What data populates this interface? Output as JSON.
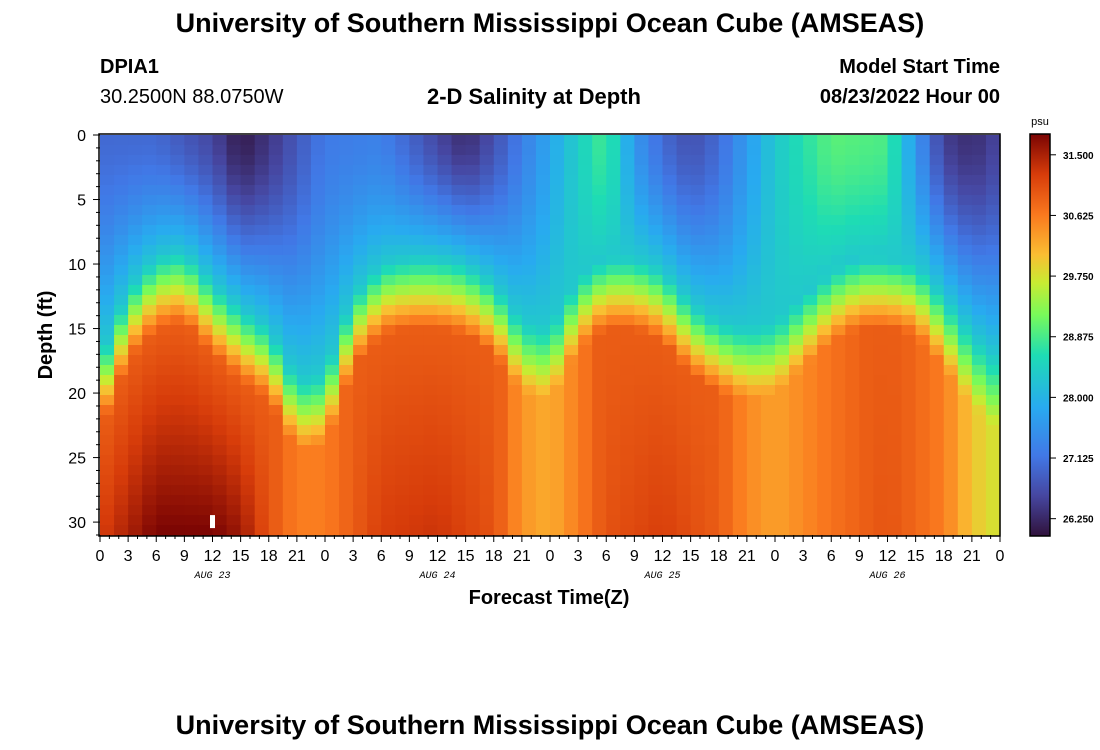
{
  "header": {
    "title": "University of Southern Mississippi Ocean Cube (AMSEAS)",
    "station_id": "DPIA1",
    "coords": "30.2500N  88.0750W",
    "plot_name": "2-D Salinity at Depth",
    "model_start_label": "Model Start Time",
    "model_start_value": "08/23/2022 Hour 00"
  },
  "footer": {
    "title": "University of Southern Mississippi Ocean Cube (AMSEAS)"
  },
  "chart_data": {
    "type": "heatmap",
    "title": "2-D Salinity at Depth",
    "xlabel": "Forecast Time(Z)",
    "ylabel": "Depth (ft)",
    "x_range_hours": [
      0,
      96
    ],
    "y_range_ft": [
      0,
      31
    ],
    "x_tick_labels": [
      "0",
      "3",
      "6",
      "9",
      "12",
      "15",
      "18",
      "21",
      "0",
      "3",
      "6",
      "9",
      "12",
      "15",
      "18",
      "21",
      "0",
      "3",
      "6",
      "9",
      "12",
      "15",
      "18",
      "21",
      "0",
      "3",
      "6",
      "9",
      "12",
      "15",
      "18",
      "21",
      "0"
    ],
    "y_ticks": [
      0,
      5,
      10,
      15,
      20,
      25,
      30
    ],
    "day_labels": [
      {
        "hour": 12,
        "label": "AUG 23"
      },
      {
        "hour": 36,
        "label": "AUG 24"
      },
      {
        "hour": 60,
        "label": "AUG 25"
      },
      {
        "hour": 84,
        "label": "AUG 26"
      }
    ],
    "colorbar": {
      "unit": "psu",
      "min": 26.0,
      "max": 31.8,
      "ticks": [
        "31.500",
        "30.625",
        "29.750",
        "28.875",
        "28.000",
        "27.125",
        "26.250"
      ]
    },
    "halocline_depth_ft": [
      {
        "hour": 0,
        "depth": 20.0
      },
      {
        "hour": 3,
        "depth": 14.5
      },
      {
        "hour": 6,
        "depth": 12.0
      },
      {
        "hour": 9,
        "depth": 11.5
      },
      {
        "hour": 12,
        "depth": 14.0
      },
      {
        "hour": 15,
        "depth": 16.0
      },
      {
        "hour": 18,
        "depth": 17.5
      },
      {
        "hour": 21,
        "depth": 21.5
      },
      {
        "hour": 24,
        "depth": 21.0
      },
      {
        "hour": 27,
        "depth": 15.0
      },
      {
        "hour": 30,
        "depth": 12.5
      },
      {
        "hour": 33,
        "depth": 12.0
      },
      {
        "hour": 36,
        "depth": 12.0
      },
      {
        "hour": 39,
        "depth": 12.5
      },
      {
        "hour": 42,
        "depth": 14.0
      },
      {
        "hour": 45,
        "depth": 17.0
      },
      {
        "hour": 48,
        "depth": 17.5
      },
      {
        "hour": 51,
        "depth": 13.5
      },
      {
        "hour": 54,
        "depth": 12.0
      },
      {
        "hour": 57,
        "depth": 12.0
      },
      {
        "hour": 60,
        "depth": 13.0
      },
      {
        "hour": 63,
        "depth": 15.5
      },
      {
        "hour": 66,
        "depth": 17.0
      },
      {
        "hour": 69,
        "depth": 17.5
      },
      {
        "hour": 72,
        "depth": 17.0
      },
      {
        "hour": 75,
        "depth": 15.0
      },
      {
        "hour": 78,
        "depth": 13.0
      },
      {
        "hour": 81,
        "depth": 12.0
      },
      {
        "hour": 84,
        "depth": 12.0
      },
      {
        "hour": 87,
        "depth": 12.5
      },
      {
        "hour": 90,
        "depth": 15.0
      },
      {
        "hour": 93,
        "depth": 18.0
      },
      {
        "hour": 96,
        "depth": 20.0
      }
    ],
    "surface_salinity_psu": [
      {
        "hour": 0,
        "value": 27.0
      },
      {
        "hour": 6,
        "value": 27.0
      },
      {
        "hour": 12,
        "value": 26.6
      },
      {
        "hour": 15,
        "value": 26.1
      },
      {
        "hour": 18,
        "value": 26.4
      },
      {
        "hour": 24,
        "value": 27.2
      },
      {
        "hour": 30,
        "value": 27.3
      },
      {
        "hour": 36,
        "value": 26.6
      },
      {
        "hour": 39,
        "value": 26.3
      },
      {
        "hour": 42,
        "value": 26.7
      },
      {
        "hour": 48,
        "value": 27.8
      },
      {
        "hour": 51,
        "value": 28.4
      },
      {
        "hour": 54,
        "value": 28.9
      },
      {
        "hour": 57,
        "value": 27.6
      },
      {
        "hour": 60,
        "value": 27.0
      },
      {
        "hour": 63,
        "value": 26.7
      },
      {
        "hour": 66,
        "value": 27.0
      },
      {
        "hour": 72,
        "value": 28.3
      },
      {
        "hour": 78,
        "value": 29.0
      },
      {
        "hour": 84,
        "value": 28.9
      },
      {
        "hour": 87,
        "value": 27.6
      },
      {
        "hour": 90,
        "value": 26.5
      },
      {
        "hour": 93,
        "value": 26.3
      },
      {
        "hour": 96,
        "value": 26.6
      }
    ],
    "bottom_salinity_psu": [
      {
        "hour": 0,
        "value": 31.2
      },
      {
        "hour": 6,
        "value": 31.8
      },
      {
        "hour": 12,
        "value": 31.8
      },
      {
        "hour": 15,
        "value": 31.6
      },
      {
        "hour": 18,
        "value": 31.0
      },
      {
        "hour": 21,
        "value": 30.6
      },
      {
        "hour": 24,
        "value": 30.6
      },
      {
        "hour": 30,
        "value": 31.2
      },
      {
        "hour": 36,
        "value": 31.3
      },
      {
        "hour": 42,
        "value": 31.0
      },
      {
        "hour": 45,
        "value": 30.4
      },
      {
        "hour": 48,
        "value": 30.2
      },
      {
        "hour": 54,
        "value": 31.0
      },
      {
        "hour": 60,
        "value": 31.2
      },
      {
        "hour": 66,
        "value": 30.9
      },
      {
        "hour": 69,
        "value": 30.5
      },
      {
        "hour": 72,
        "value": 30.3
      },
      {
        "hour": 78,
        "value": 30.7
      },
      {
        "hour": 84,
        "value": 31.0
      },
      {
        "hour": 90,
        "value": 30.6
      },
      {
        "hour": 93,
        "value": 30.0
      },
      {
        "hour": 96,
        "value": 29.7
      }
    ],
    "marker": {
      "hour": 12,
      "depth": 30.0
    }
  }
}
